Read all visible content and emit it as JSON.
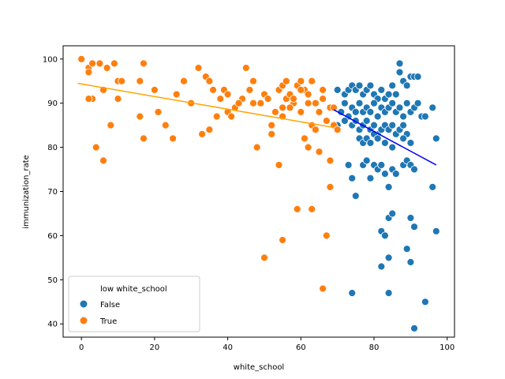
{
  "chart_data": {
    "type": "scatter",
    "xlabel": "white_school",
    "ylabel": "immunization_rate",
    "xlim": [
      -5,
      102
    ],
    "ylim": [
      37,
      103
    ],
    "xticks": [
      0,
      20,
      40,
      60,
      80,
      100
    ],
    "yticks": [
      40,
      50,
      60,
      70,
      80,
      90,
      100
    ],
    "grid": false,
    "legend": {
      "title": "low white_school",
      "placement": "lower-left",
      "entries": [
        {
          "label": "False",
          "color": "#1f77b4"
        },
        {
          "label": "True",
          "color": "#ff7f0e"
        }
      ]
    },
    "series": [
      {
        "name": "False",
        "color": "#1f77b4",
        "points": [
          [
            70,
            93
          ],
          [
            72,
            92
          ],
          [
            73,
            93
          ],
          [
            74,
            94
          ],
          [
            75,
            93
          ],
          [
            76,
            94
          ],
          [
            77,
            92
          ],
          [
            78,
            93
          ],
          [
            79,
            94
          ],
          [
            80,
            92
          ],
          [
            81,
            91
          ],
          [
            82,
            93
          ],
          [
            83,
            91
          ],
          [
            84,
            92
          ],
          [
            85,
            94
          ],
          [
            86,
            92
          ],
          [
            87,
            97
          ],
          [
            88,
            95
          ],
          [
            89,
            94
          ],
          [
            90,
            96
          ],
          [
            91,
            96
          ],
          [
            71,
            88
          ],
          [
            72,
            90
          ],
          [
            73,
            87
          ],
          [
            74,
            89
          ],
          [
            75,
            88
          ],
          [
            76,
            90
          ],
          [
            77,
            88
          ],
          [
            78,
            89
          ],
          [
            79,
            88
          ],
          [
            80,
            90
          ],
          [
            81,
            87
          ],
          [
            82,
            89
          ],
          [
            83,
            88
          ],
          [
            84,
            89
          ],
          [
            85,
            90
          ],
          [
            86,
            88
          ],
          [
            87,
            89
          ],
          [
            88,
            87
          ],
          [
            89,
            90
          ],
          [
            90,
            88
          ],
          [
            91,
            89
          ],
          [
            92,
            90
          ],
          [
            93,
            87
          ],
          [
            70,
            85
          ],
          [
            72,
            86
          ],
          [
            74,
            85
          ],
          [
            75,
            86
          ],
          [
            76,
            84
          ],
          [
            77,
            85
          ],
          [
            78,
            86
          ],
          [
            79,
            84
          ],
          [
            80,
            85
          ],
          [
            81,
            83
          ],
          [
            82,
            84
          ],
          [
            83,
            85
          ],
          [
            84,
            84
          ],
          [
            85,
            85
          ],
          [
            86,
            83
          ],
          [
            87,
            84
          ],
          [
            88,
            85
          ],
          [
            89,
            83
          ],
          [
            76,
            82
          ],
          [
            77,
            81
          ],
          [
            78,
            82
          ],
          [
            79,
            81
          ],
          [
            80,
            83
          ],
          [
            81,
            82
          ],
          [
            83,
            81
          ],
          [
            85,
            80
          ],
          [
            88,
            82
          ],
          [
            90,
            81
          ],
          [
            97,
            82
          ],
          [
            73,
            76
          ],
          [
            74,
            73
          ],
          [
            77,
            76
          ],
          [
            78,
            77
          ],
          [
            79,
            73
          ],
          [
            80,
            76
          ],
          [
            81,
            75
          ],
          [
            82,
            76
          ],
          [
            83,
            74
          ],
          [
            84,
            71
          ],
          [
            85,
            75
          ],
          [
            86,
            74
          ],
          [
            88,
            76
          ],
          [
            89,
            77
          ],
          [
            90,
            76
          ],
          [
            91,
            75
          ],
          [
            75,
            69
          ],
          [
            84,
            64
          ],
          [
            85,
            65
          ],
          [
            82,
            61
          ],
          [
            83,
            60
          ],
          [
            84,
            55
          ],
          [
            82,
            53
          ],
          [
            89,
            57
          ],
          [
            91,
            62
          ],
          [
            90,
            64
          ],
          [
            90,
            54
          ],
          [
            97,
            61
          ],
          [
            74,
            47
          ],
          [
            84,
            47
          ],
          [
            94,
            45
          ],
          [
            91,
            39
          ],
          [
            87,
            99
          ],
          [
            96,
            89
          ],
          [
            94,
            87
          ],
          [
            96,
            71
          ],
          [
            92,
            96
          ]
        ]
      },
      {
        "name": "True",
        "color": "#ff7f0e",
        "points": [
          [
            0,
            100
          ],
          [
            2,
            98
          ],
          [
            3,
            99
          ],
          [
            5,
            99
          ],
          [
            7,
            98
          ],
          [
            9,
            99
          ],
          [
            17,
            99
          ],
          [
            2,
            97
          ],
          [
            6,
            93
          ],
          [
            3,
            91
          ],
          [
            2,
            91
          ],
          [
            10,
            95
          ],
          [
            11,
            95
          ],
          [
            16,
            95
          ],
          [
            10,
            91
          ],
          [
            4,
            80
          ],
          [
            6,
            77
          ],
          [
            8,
            85
          ],
          [
            16,
            87
          ],
          [
            17,
            82
          ],
          [
            20,
            93
          ],
          [
            21,
            88
          ],
          [
            23,
            85
          ],
          [
            25,
            82
          ],
          [
            26,
            92
          ],
          [
            28,
            95
          ],
          [
            30,
            90
          ],
          [
            32,
            98
          ],
          [
            33,
            83
          ],
          [
            34,
            96
          ],
          [
            35,
            95
          ],
          [
            35,
            84
          ],
          [
            36,
            93
          ],
          [
            37,
            87
          ],
          [
            38,
            91
          ],
          [
            39,
            93
          ],
          [
            40,
            92
          ],
          [
            40,
            88
          ],
          [
            41,
            87
          ],
          [
            42,
            89
          ],
          [
            44,
            91
          ],
          [
            45,
            98
          ],
          [
            46,
            93
          ],
          [
            47,
            95
          ],
          [
            47,
            90
          ],
          [
            48,
            80
          ],
          [
            49,
            90
          ],
          [
            50,
            92
          ],
          [
            51,
            91
          ],
          [
            52,
            85
          ],
          [
            53,
            88
          ],
          [
            54,
            93
          ],
          [
            55,
            94
          ],
          [
            55,
            89
          ],
          [
            56,
            91
          ],
          [
            56,
            95
          ],
          [
            57,
            92
          ],
          [
            58,
            90
          ],
          [
            59,
            94
          ],
          [
            60,
            95
          ],
          [
            61,
            93
          ],
          [
            62,
            92
          ],
          [
            63,
            95
          ],
          [
            64,
            90
          ],
          [
            65,
            88
          ],
          [
            43,
            90
          ],
          [
            52,
            83
          ],
          [
            55,
            87
          ],
          [
            57,
            89
          ],
          [
            58,
            91
          ],
          [
            60,
            88
          ],
          [
            61,
            82
          ],
          [
            62,
            80
          ],
          [
            63,
            85
          ],
          [
            64,
            84
          ],
          [
            65,
            79
          ],
          [
            66,
            91
          ],
          [
            67,
            86
          ],
          [
            68,
            89
          ],
          [
            69,
            85
          ],
          [
            70,
            84
          ],
          [
            54,
            76
          ],
          [
            55,
            59
          ],
          [
            50,
            55
          ],
          [
            59,
            66
          ],
          [
            63,
            66
          ],
          [
            67,
            60
          ],
          [
            66,
            48
          ],
          [
            68,
            71
          ],
          [
            68,
            77
          ],
          [
            60,
            93
          ],
          [
            62,
            90
          ],
          [
            66,
            93
          ],
          [
            69,
            89
          ]
        ]
      }
    ],
    "regression_lines": [
      {
        "series": "True",
        "color": "#ffa500",
        "x": [
          -1,
          69
        ],
        "y": [
          94.5,
          84.5
        ]
      },
      {
        "series": "False",
        "color": "#0000ff",
        "x": [
          69,
          97
        ],
        "y": [
          88.5,
          76
        ]
      }
    ]
  }
}
